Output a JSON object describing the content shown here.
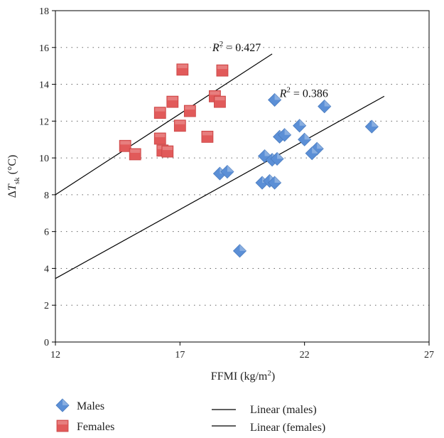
{
  "chart_data": {
    "type": "scatter",
    "xlabel": "FFMI (kg/m²)",
    "ylabel": "ΔT_sk (°C)",
    "xlim": [
      12,
      27
    ],
    "ylim": [
      0,
      18
    ],
    "xticks": [
      12,
      17,
      22,
      27
    ],
    "yticks": [
      0,
      2,
      4,
      6,
      8,
      10,
      12,
      14,
      16,
      18
    ],
    "grid": "horizontal dotted",
    "legend_position": "bottom",
    "series": [
      {
        "name": "Males",
        "marker": "diamond",
        "color": "#5b8fd6",
        "points": [
          [
            20.8,
            13.15
          ],
          [
            22.8,
            12.8
          ],
          [
            21.8,
            11.75
          ],
          [
            24.7,
            11.7
          ],
          [
            21.0,
            11.15
          ],
          [
            21.2,
            11.25
          ],
          [
            22.0,
            11.0
          ],
          [
            22.5,
            10.5
          ],
          [
            22.3,
            10.25
          ],
          [
            20.4,
            10.1
          ],
          [
            20.7,
            9.9
          ],
          [
            20.9,
            9.95
          ],
          [
            18.6,
            9.15
          ],
          [
            18.9,
            9.25
          ],
          [
            20.3,
            8.65
          ],
          [
            20.6,
            8.75
          ],
          [
            20.8,
            8.65
          ],
          [
            19.4,
            4.95
          ]
        ]
      },
      {
        "name": "Females",
        "marker": "square",
        "color": "#e15a5a",
        "points": [
          [
            17.1,
            14.8
          ],
          [
            18.7,
            14.75
          ],
          [
            18.4,
            13.35
          ],
          [
            18.6,
            13.05
          ],
          [
            16.7,
            13.05
          ],
          [
            17.4,
            12.55
          ],
          [
            16.2,
            12.45
          ],
          [
            17.0,
            11.75
          ],
          [
            16.2,
            11.05
          ],
          [
            18.1,
            11.15
          ],
          [
            14.8,
            10.65
          ],
          [
            15.2,
            10.2
          ],
          [
            16.3,
            10.4
          ],
          [
            16.5,
            10.35
          ]
        ]
      },
      {
        "name": "Linear (males)",
        "type": "line",
        "color": "#000000",
        "x": [
          12,
          25.2
        ],
        "y": [
          3.45,
          13.35
        ]
      },
      {
        "name": "Linear (females)",
        "type": "line",
        "color": "#000000",
        "x": [
          12,
          20.7
        ],
        "y": [
          8.0,
          15.65
        ]
      }
    ],
    "annotations": [
      {
        "label": "R",
        "sup": "2",
        "rest": " = 0.427",
        "x": 18.3,
        "y": 15.8
      },
      {
        "label": "R",
        "sup": "2",
        "rest": " = 0.386",
        "x": 21.0,
        "y": 13.3
      }
    ],
    "legend": {
      "males": "Males",
      "females": "Females",
      "linear_males": "Linear (males)",
      "linear_females": "Linear (females)"
    }
  }
}
